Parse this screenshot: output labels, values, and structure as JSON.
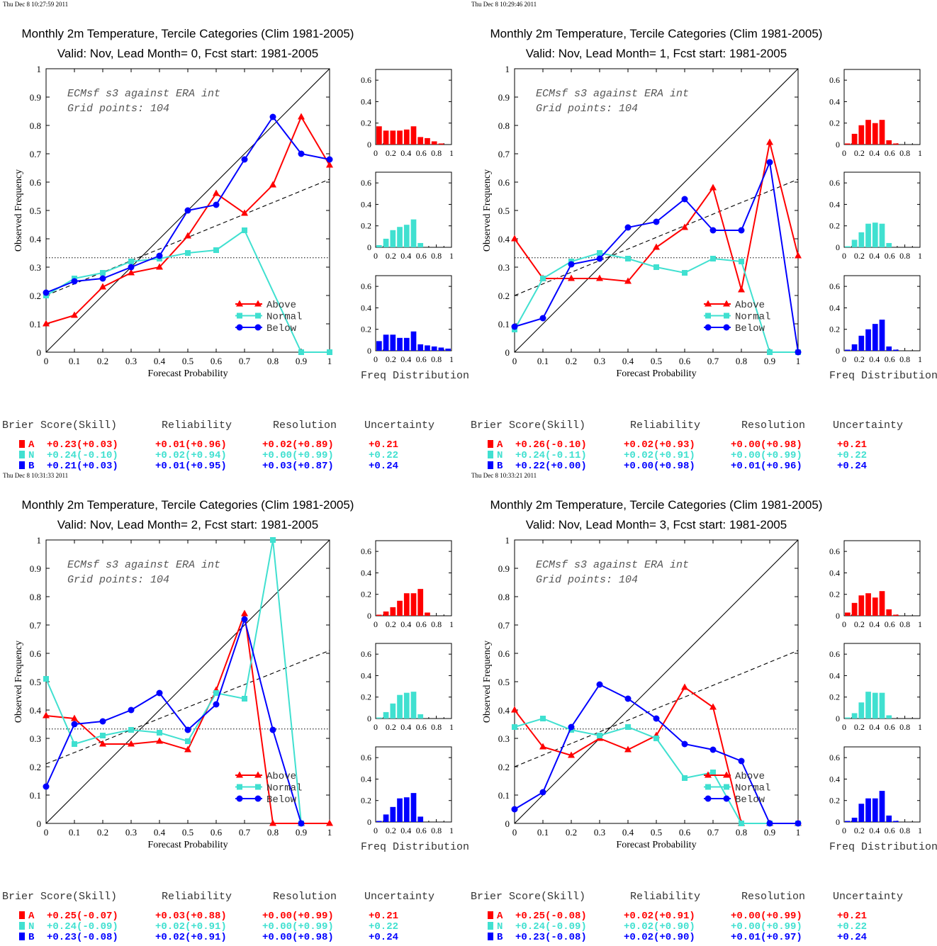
{
  "colors": {
    "above": "#ff0000",
    "normal": "#40e0d0",
    "below": "#0000ff",
    "axis": "#000000"
  },
  "legend_labels": [
    "Above",
    "Normal",
    "Below"
  ],
  "table_headers": {
    "brier": "Brier Score(Skill)",
    "reliability": "Reliability",
    "resolution": "Resolution",
    "uncertainty": "Uncertainty"
  },
  "x_ticks": [
    "0",
    "0.1",
    "0.2",
    "0.3",
    "0.4",
    "0.5",
    "0.6",
    "0.7",
    "0.8",
    "0.9",
    "1"
  ],
  "y_ticks": [
    "0",
    "0.1",
    "0.2",
    "0.3",
    "0.4",
    "0.5",
    "0.6",
    "0.7",
    "0.8",
    "0.9",
    "1"
  ],
  "hist_x_ticks": [
    "0",
    "0.2",
    "0.4",
    "0.6",
    "0.8",
    "1"
  ],
  "hist_y_ticks": [
    "0",
    "0.2",
    "0.4",
    "0.6"
  ],
  "chart_data": [
    {
      "type": "line",
      "timestamp": "Thu Dec  8 10:27:59 2011",
      "title": "Monthly 2m Temperature, Tercile Categories (Clim 1981-2005)",
      "subtitle": "Valid: Nov, Lead Month= 0, Fcst start: 1981-2005",
      "annotation": [
        "ECMsf s3 against ERA int",
        "Grid points:  104"
      ],
      "xlabel": "Forecast Probability",
      "ylabel": "Observed Frequency",
      "xlim": [
        0,
        1
      ],
      "ylim": [
        0,
        1
      ],
      "climatology": 0.333,
      "regression": [
        [
          0,
          0.2
        ],
        [
          1,
          0.61
        ]
      ],
      "series": [
        {
          "name": "Above",
          "x": [
            0,
            0.1,
            0.2,
            0.3,
            0.4,
            0.5,
            0.6,
            0.7,
            0.8,
            0.9,
            1
          ],
          "y": [
            0.1,
            0.13,
            0.23,
            0.28,
            0.3,
            0.41,
            0.56,
            0.49,
            0.59,
            0.83,
            0.66
          ]
        },
        {
          "name": "Normal",
          "x": [
            0,
            0.1,
            0.2,
            0.3,
            0.4,
            0.5,
            0.6,
            0.7,
            0.9,
            1
          ],
          "y": [
            0.2,
            0.26,
            0.28,
            0.32,
            0.33,
            0.35,
            0.36,
            0.43,
            0,
            0
          ]
        },
        {
          "name": "Below",
          "x": [
            0,
            0.1,
            0.2,
            0.3,
            0.4,
            0.5,
            0.6,
            0.7,
            0.8,
            0.9,
            1
          ],
          "y": [
            0.21,
            0.25,
            0.26,
            0.3,
            0.34,
            0.5,
            0.52,
            0.68,
            0.83,
            0.7,
            0.68
          ]
        }
      ],
      "freq_distribution": {
        "xlabel": "Freq Distribution",
        "above": [
          0.17,
          0.13,
          0.13,
          0.13,
          0.14,
          0.17,
          0.07,
          0.06,
          0.03,
          0.01,
          0.0
        ],
        "normal": [
          0.02,
          0.08,
          0.16,
          0.19,
          0.21,
          0.26,
          0.04,
          0.0,
          0.0,
          0.0,
          0.0
        ],
        "below": [
          0.09,
          0.15,
          0.15,
          0.12,
          0.12,
          0.18,
          0.06,
          0.05,
          0.04,
          0.03,
          0.02
        ]
      },
      "scores": [
        {
          "cat": "A",
          "brier": "+0.23(+0.03)",
          "reliability": "+0.01(+0.96)",
          "resolution": "+0.02(+0.89)",
          "uncertainty": "+0.21"
        },
        {
          "cat": "N",
          "brier": "+0.24(-0.10)",
          "reliability": "+0.02(+0.94)",
          "resolution": "+0.00(+0.99)",
          "uncertainty": "+0.22"
        },
        {
          "cat": "B",
          "brier": "+0.21(+0.03)",
          "reliability": "+0.01(+0.95)",
          "resolution": "+0.03(+0.87)",
          "uncertainty": "+0.24"
        }
      ]
    },
    {
      "type": "line",
      "timestamp": "Thu Dec  8 10:29:46 2011",
      "title": "Monthly 2m Temperature, Tercile Categories (Clim 1981-2005)",
      "subtitle": "Valid: Nov, Lead Month= 1, Fcst start: 1981-2005",
      "annotation": [
        "ECMsf s3 against ERA int",
        "Grid points:  104"
      ],
      "xlabel": "Forecast Probability",
      "ylabel": "Observed Frequency",
      "xlim": [
        0,
        1
      ],
      "ylim": [
        0,
        1
      ],
      "climatology": 0.333,
      "regression": [
        [
          0,
          0.2
        ],
        [
          1,
          0.61
        ]
      ],
      "series": [
        {
          "name": "Above",
          "x": [
            0,
            0.1,
            0.2,
            0.3,
            0.4,
            0.5,
            0.6,
            0.7,
            0.8,
            0.9,
            1
          ],
          "y": [
            0.4,
            0.26,
            0.26,
            0.26,
            0.25,
            0.37,
            0.44,
            0.58,
            0.22,
            0.74,
            0.34
          ]
        },
        {
          "name": "Normal",
          "x": [
            0,
            0.1,
            0.2,
            0.3,
            0.4,
            0.5,
            0.6,
            0.7,
            0.8,
            0.9,
            1
          ],
          "y": [
            0.08,
            0.26,
            0.32,
            0.35,
            0.33,
            0.3,
            0.28,
            0.33,
            0.32,
            0,
            0
          ]
        },
        {
          "name": "Below",
          "x": [
            0,
            0.1,
            0.2,
            0.3,
            0.4,
            0.5,
            0.6,
            0.7,
            0.8,
            0.9,
            1
          ],
          "y": [
            0.09,
            0.12,
            0.31,
            0.33,
            0.44,
            0.46,
            0.54,
            0.43,
            0.43,
            0.67,
            0
          ]
        }
      ],
      "freq_distribution": {
        "xlabel": "Freq Distribution",
        "above": [
          0.01,
          0.1,
          0.18,
          0.23,
          0.2,
          0.23,
          0.04,
          0.01,
          0.0,
          0.0,
          0.0
        ],
        "normal": [
          0.01,
          0.07,
          0.14,
          0.22,
          0.23,
          0.22,
          0.04,
          0.0,
          0.0,
          0.0,
          0.0
        ],
        "below": [
          0.01,
          0.06,
          0.14,
          0.2,
          0.25,
          0.29,
          0.04,
          0.01,
          0.0,
          0.0,
          0.0
        ]
      },
      "scores": [
        {
          "cat": "A",
          "brier": "+0.26(-0.10)",
          "reliability": "+0.02(+0.93)",
          "resolution": "+0.00(+0.98)",
          "uncertainty": "+0.21"
        },
        {
          "cat": "N",
          "brier": "+0.24(-0.11)",
          "reliability": "+0.02(+0.91)",
          "resolution": "+0.00(+0.99)",
          "uncertainty": "+0.22"
        },
        {
          "cat": "B",
          "brier": "+0.22(+0.00)",
          "reliability": "+0.00(+0.98)",
          "resolution": "+0.01(+0.96)",
          "uncertainty": "+0.24"
        }
      ]
    },
    {
      "type": "line",
      "timestamp": "Thu Dec  8 10:31:33 2011",
      "title": "Monthly 2m Temperature, Tercile Categories (Clim 1981-2005)",
      "subtitle": "Valid: Nov, Lead Month= 2, Fcst start: 1981-2005",
      "annotation": [
        "ECMsf s3 against ERA int",
        "Grid points:  104"
      ],
      "xlabel": "Forecast Probability",
      "ylabel": "Observed Frequency",
      "xlim": [
        0,
        1
      ],
      "ylim": [
        0,
        1
      ],
      "climatology": 0.333,
      "regression": [
        [
          0,
          0.21
        ],
        [
          1,
          0.61
        ]
      ],
      "series": [
        {
          "name": "Above",
          "x": [
            0,
            0.1,
            0.2,
            0.3,
            0.4,
            0.5,
            0.6,
            0.7,
            0.8,
            0.9,
            1
          ],
          "y": [
            0.38,
            0.37,
            0.28,
            0.28,
            0.29,
            0.26,
            0.47,
            0.74,
            0,
            0,
            0
          ]
        },
        {
          "name": "Normal",
          "x": [
            0,
            0.1,
            0.2,
            0.3,
            0.4,
            0.5,
            0.6,
            0.7,
            0.8,
            0.9
          ],
          "y": [
            0.51,
            0.28,
            0.31,
            0.33,
            0.32,
            0.29,
            0.46,
            0.44,
            1.0,
            0
          ]
        },
        {
          "name": "Below",
          "x": [
            0,
            0.1,
            0.2,
            0.3,
            0.4,
            0.5,
            0.6,
            0.7,
            0.8,
            0.9
          ],
          "y": [
            0.13,
            0.35,
            0.36,
            0.4,
            0.46,
            0.33,
            0.42,
            0.72,
            0.33,
            0
          ]
        }
      ],
      "freq_distribution": {
        "xlabel": "Freq Distribution",
        "above": [
          0.01,
          0.04,
          0.08,
          0.14,
          0.21,
          0.21,
          0.25,
          0.03,
          0.0,
          0.0,
          0.0
        ],
        "normal": [
          0.01,
          0.06,
          0.14,
          0.22,
          0.24,
          0.25,
          0.04,
          0.0,
          0.0,
          0.0,
          0.0
        ],
        "below": [
          0.01,
          0.07,
          0.14,
          0.22,
          0.23,
          0.27,
          0.05,
          0.0,
          0.0,
          0.0,
          0.0
        ]
      },
      "scores": [
        {
          "cat": "A",
          "brier": "+0.25(-0.07)",
          "reliability": "+0.03(+0.88)",
          "resolution": "+0.00(+0.99)",
          "uncertainty": "+0.21"
        },
        {
          "cat": "N",
          "brier": "+0.24(-0.09)",
          "reliability": "+0.02(+0.91)",
          "resolution": "+0.00(+0.99)",
          "uncertainty": "+0.22"
        },
        {
          "cat": "B",
          "brier": "+0.23(-0.08)",
          "reliability": "+0.02(+0.91)",
          "resolution": "+0.00(+0.98)",
          "uncertainty": "+0.24"
        }
      ]
    },
    {
      "type": "line",
      "timestamp": "Thu Dec  8 10:33:21 2011",
      "title": "Monthly 2m Temperature, Tercile Categories (Clim 1981-2005)",
      "subtitle": "Valid: Nov, Lead Month= 3, Fcst start: 1981-2005",
      "annotation": [
        "ECMsf s3 against ERA int",
        "Grid points:  104"
      ],
      "xlabel": "Forecast Probability",
      "ylabel": "Observed Frequency",
      "xlim": [
        0,
        1
      ],
      "ylim": [
        0,
        1
      ],
      "climatology": 0.333,
      "regression": [
        [
          0,
          0.2
        ],
        [
          1,
          0.61
        ]
      ],
      "series": [
        {
          "name": "Above",
          "x": [
            0,
            0.1,
            0.2,
            0.3,
            0.4,
            0.5,
            0.6,
            0.7,
            0.8,
            0.9,
            1
          ],
          "y": [
            0.4,
            0.27,
            0.24,
            0.3,
            0.26,
            0.31,
            0.48,
            0.41,
            0,
            0,
            0
          ]
        },
        {
          "name": "Normal",
          "x": [
            0,
            0.1,
            0.2,
            0.3,
            0.4,
            0.5,
            0.6,
            0.7,
            0.8,
            0.9,
            1
          ],
          "y": [
            0.34,
            0.37,
            0.33,
            0.31,
            0.34,
            0.3,
            0.16,
            0.18,
            0,
            0,
            0
          ]
        },
        {
          "name": "Below",
          "x": [
            0,
            0.1,
            0.2,
            0.3,
            0.4,
            0.5,
            0.6,
            0.7,
            0.8,
            0.9,
            1
          ],
          "y": [
            0.05,
            0.11,
            0.34,
            0.49,
            0.44,
            0.37,
            0.28,
            0.26,
            0.22,
            0,
            0
          ]
        }
      ],
      "freq_distribution": {
        "xlabel": "Freq Distribution",
        "above": [
          0.03,
          0.12,
          0.19,
          0.21,
          0.17,
          0.23,
          0.06,
          0.01,
          0.0,
          0.0,
          0.0
        ],
        "normal": [
          0.01,
          0.05,
          0.15,
          0.25,
          0.24,
          0.24,
          0.03,
          0.0,
          0.0,
          0.0,
          0.0
        ],
        "below": [
          0.01,
          0.04,
          0.17,
          0.22,
          0.22,
          0.29,
          0.06,
          0.01,
          0.0,
          0.0,
          0.0
        ]
      },
      "scores": [
        {
          "cat": "A",
          "brier": "+0.25(-0.08)",
          "reliability": "+0.02(+0.91)",
          "resolution": "+0.00(+0.99)",
          "uncertainty": "+0.21"
        },
        {
          "cat": "N",
          "brier": "+0.24(-0.09)",
          "reliability": "+0.02(+0.90)",
          "resolution": "+0.00(+0.99)",
          "uncertainty": "+0.22"
        },
        {
          "cat": "B",
          "brier": "+0.23(-0.08)",
          "reliability": "+0.02(+0.90)",
          "resolution": "+0.01(+0.97)",
          "uncertainty": "+0.24"
        }
      ]
    }
  ]
}
